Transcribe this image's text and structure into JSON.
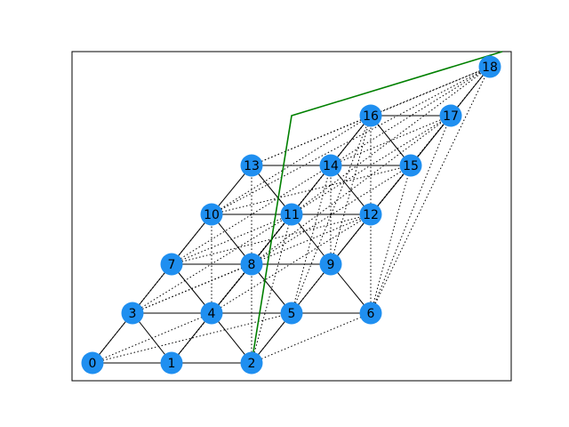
{
  "colors": {
    "node_fill": "#1f8ff0",
    "solid_edge": "#000000",
    "dotted_edge": "#000000",
    "highlight_path": "#008000",
    "frame": "#000000"
  },
  "graph": {
    "nodes": [
      {
        "id": "0",
        "label": "0"
      },
      {
        "id": "1",
        "label": "1"
      },
      {
        "id": "2",
        "label": "2"
      },
      {
        "id": "3",
        "label": "3"
      },
      {
        "id": "4",
        "label": "4"
      },
      {
        "id": "5",
        "label": "5"
      },
      {
        "id": "6",
        "label": "6"
      },
      {
        "id": "7",
        "label": "7"
      },
      {
        "id": "8",
        "label": "8"
      },
      {
        "id": "9",
        "label": "9"
      },
      {
        "id": "10",
        "label": "10"
      },
      {
        "id": "11",
        "label": "11"
      },
      {
        "id": "12",
        "label": "12"
      },
      {
        "id": "13",
        "label": "13"
      },
      {
        "id": "14",
        "label": "14"
      },
      {
        "id": "15",
        "label": "15"
      },
      {
        "id": "16",
        "label": "16"
      },
      {
        "id": "17",
        "label": "17"
      },
      {
        "id": "18",
        "label": "18"
      }
    ],
    "solid_edges": [
      [
        "0",
        "1"
      ],
      [
        "1",
        "2"
      ],
      [
        "0",
        "3"
      ],
      [
        "1",
        "3"
      ],
      [
        "1",
        "4"
      ],
      [
        "2",
        "4"
      ],
      [
        "2",
        "5"
      ],
      [
        "3",
        "4"
      ],
      [
        "4",
        "5"
      ],
      [
        "5",
        "6"
      ],
      [
        "3",
        "7"
      ],
      [
        "4",
        "7"
      ],
      [
        "4",
        "8"
      ],
      [
        "5",
        "8"
      ],
      [
        "5",
        "9"
      ],
      [
        "6",
        "9"
      ],
      [
        "7",
        "8"
      ],
      [
        "8",
        "9"
      ],
      [
        "7",
        "10"
      ],
      [
        "8",
        "10"
      ],
      [
        "8",
        "11"
      ],
      [
        "9",
        "11"
      ],
      [
        "9",
        "12"
      ],
      [
        "10",
        "11"
      ],
      [
        "11",
        "12"
      ],
      [
        "10",
        "13"
      ],
      [
        "11",
        "13"
      ],
      [
        "11",
        "14"
      ],
      [
        "12",
        "14"
      ],
      [
        "12",
        "15"
      ],
      [
        "13",
        "14"
      ],
      [
        "14",
        "15"
      ],
      [
        "14",
        "16"
      ],
      [
        "15",
        "16"
      ],
      [
        "15",
        "17"
      ],
      [
        "16",
        "17"
      ],
      [
        "17",
        "18"
      ]
    ],
    "dotted_edges": [
      [
        "0",
        "4"
      ],
      [
        "0",
        "5"
      ],
      [
        "0",
        "2"
      ],
      [
        "0",
        "7"
      ],
      [
        "1",
        "8"
      ],
      [
        "1",
        "11"
      ],
      [
        "2",
        "6"
      ],
      [
        "2",
        "9"
      ],
      [
        "2",
        "8"
      ],
      [
        "2",
        "11"
      ],
      [
        "3",
        "8"
      ],
      [
        "3",
        "10"
      ],
      [
        "3",
        "12"
      ],
      [
        "3",
        "11"
      ],
      [
        "4",
        "10"
      ],
      [
        "4",
        "11"
      ],
      [
        "4",
        "14"
      ],
      [
        "4",
        "12"
      ],
      [
        "5",
        "12"
      ],
      [
        "5",
        "14"
      ],
      [
        "5",
        "16"
      ],
      [
        "6",
        "12"
      ],
      [
        "6",
        "15"
      ],
      [
        "6",
        "17"
      ],
      [
        "6",
        "18"
      ],
      [
        "7",
        "11"
      ],
      [
        "7",
        "12"
      ],
      [
        "7",
        "14"
      ],
      [
        "8",
        "13"
      ],
      [
        "8",
        "14"
      ],
      [
        "8",
        "15"
      ],
      [
        "8",
        "16"
      ],
      [
        "8",
        "17"
      ],
      [
        "9",
        "14"
      ],
      [
        "9",
        "15"
      ],
      [
        "9",
        "16"
      ],
      [
        "10",
        "12"
      ],
      [
        "10",
        "15"
      ],
      [
        "10",
        "16"
      ],
      [
        "10",
        "18"
      ],
      [
        "11",
        "16"
      ],
      [
        "11",
        "17"
      ],
      [
        "11",
        "18"
      ],
      [
        "12",
        "16"
      ],
      [
        "12",
        "17"
      ],
      [
        "12",
        "18"
      ],
      [
        "13",
        "15"
      ],
      [
        "13",
        "16"
      ],
      [
        "13",
        "18"
      ],
      [
        "14",
        "17"
      ],
      [
        "14",
        "18"
      ],
      [
        "15",
        "18"
      ],
      [
        "16",
        "18"
      ]
    ],
    "highlight_path": [
      "2",
      "bend",
      "top-right-corner"
    ]
  }
}
